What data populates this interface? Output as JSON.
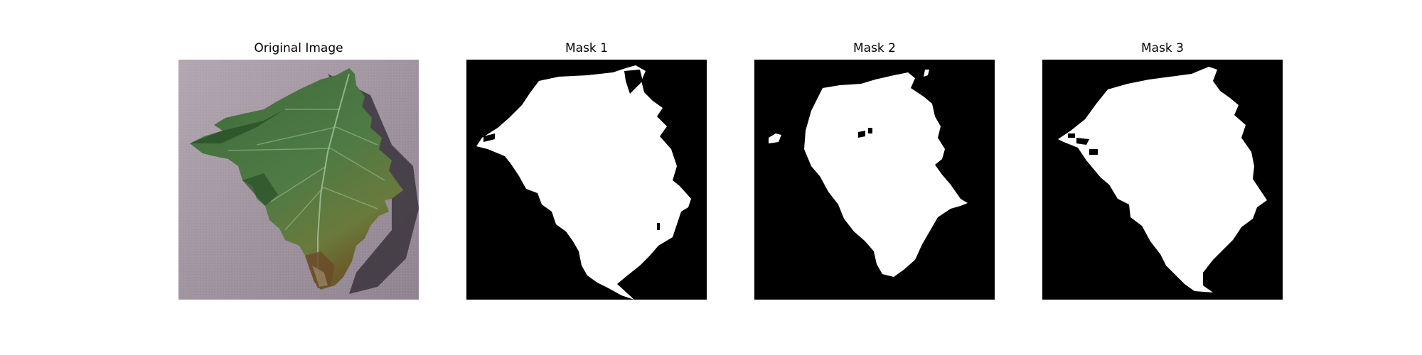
{
  "figure": {
    "panels": [
      {
        "title": "Original Image",
        "kind": "photo"
      },
      {
        "title": "Mask 1",
        "kind": "mask"
      },
      {
        "title": "Mask 2",
        "kind": "mask"
      },
      {
        "title": "Mask 3",
        "kind": "mask"
      }
    ],
    "colors": {
      "background": "#ffffff",
      "mask_background": "#000000",
      "mask_foreground": "#ffffff",
      "leaf_dark": "#2f5a2c",
      "leaf_mid": "#4f7d45",
      "leaf_light": "#7fa36c",
      "surface": "#a69aa6",
      "shadow": "#3a343c"
    }
  }
}
